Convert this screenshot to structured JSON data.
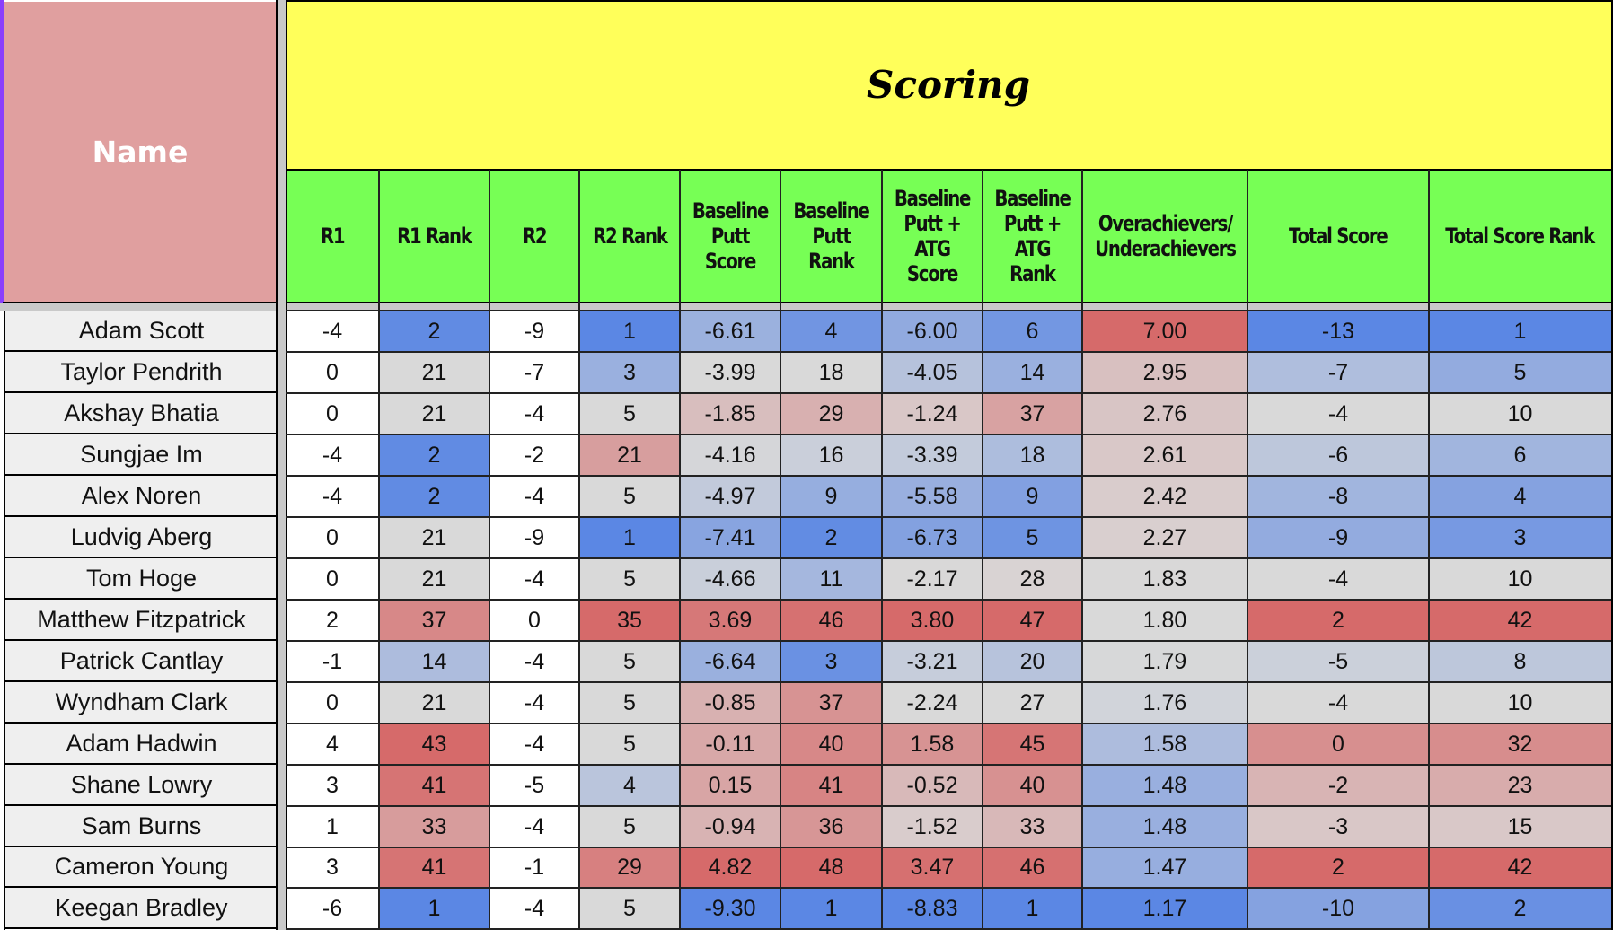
{
  "sheet": {
    "name_header": "Name",
    "group_header": "Scoring",
    "columns": [
      "R1",
      "R1 Rank",
      "R2",
      "R2 Rank",
      "Baseline Putt Score",
      "Baseline Putt Rank",
      "Baseline Putt + ATG Score",
      "Baseline Putt + ATG Rank",
      "Overachievers/ Underachievers",
      "Total Score",
      "Total Score Rank"
    ],
    "header_colors": {
      "name": "#e09f9f",
      "group": "#ffff5a",
      "columns": "#77ff55"
    },
    "scale_colors": {
      "low": "#5b87e4",
      "mid": "#d9d9d9",
      "high": "#d66a6a"
    },
    "rows": [
      {
        "name": "Adam Scott",
        "r1": "-4",
        "r1_rank": "2",
        "r2": "-9",
        "r2_rank": "1",
        "bp_score": "-6.61",
        "bp_rank": "4",
        "bpatg_score": "-6.00",
        "bpatg_rank": "6",
        "over_under": "7.00",
        "total": "-13",
        "total_rank": "1"
      },
      {
        "name": "Taylor Pendrith",
        "r1": "0",
        "r1_rank": "21",
        "r2": "-7",
        "r2_rank": "3",
        "bp_score": "-3.99",
        "bp_rank": "18",
        "bpatg_score": "-4.05",
        "bpatg_rank": "14",
        "over_under": "2.95",
        "total": "-7",
        "total_rank": "5"
      },
      {
        "name": "Akshay Bhatia",
        "r1": "0",
        "r1_rank": "21",
        "r2": "-4",
        "r2_rank": "5",
        "bp_score": "-1.85",
        "bp_rank": "29",
        "bpatg_score": "-1.24",
        "bpatg_rank": "37",
        "over_under": "2.76",
        "total": "-4",
        "total_rank": "10"
      },
      {
        "name": "Sungjae Im",
        "r1": "-4",
        "r1_rank": "2",
        "r2": "-2",
        "r2_rank": "21",
        "bp_score": "-4.16",
        "bp_rank": "16",
        "bpatg_score": "-3.39",
        "bpatg_rank": "18",
        "over_under": "2.61",
        "total": "-6",
        "total_rank": "6"
      },
      {
        "name": "Alex Noren",
        "r1": "-4",
        "r1_rank": "2",
        "r2": "-4",
        "r2_rank": "5",
        "bp_score": "-4.97",
        "bp_rank": "9",
        "bpatg_score": "-5.58",
        "bpatg_rank": "9",
        "over_under": "2.42",
        "total": "-8",
        "total_rank": "4"
      },
      {
        "name": "Ludvig Aberg",
        "r1": "0",
        "r1_rank": "21",
        "r2": "-9",
        "r2_rank": "1",
        "bp_score": "-7.41",
        "bp_rank": "2",
        "bpatg_score": "-6.73",
        "bpatg_rank": "5",
        "over_under": "2.27",
        "total": "-9",
        "total_rank": "3"
      },
      {
        "name": "Tom Hoge",
        "r1": "0",
        "r1_rank": "21",
        "r2": "-4",
        "r2_rank": "5",
        "bp_score": "-4.66",
        "bp_rank": "11",
        "bpatg_score": "-2.17",
        "bpatg_rank": "28",
        "over_under": "1.83",
        "total": "-4",
        "total_rank": "10"
      },
      {
        "name": "Matthew Fitzpatrick",
        "r1": "2",
        "r1_rank": "37",
        "r2": "0",
        "r2_rank": "35",
        "bp_score": "3.69",
        "bp_rank": "46",
        "bpatg_score": "3.80",
        "bpatg_rank": "47",
        "over_under": "1.80",
        "total": "2",
        "total_rank": "42"
      },
      {
        "name": "Patrick Cantlay",
        "r1": "-1",
        "r1_rank": "14",
        "r2": "-4",
        "r2_rank": "5",
        "bp_score": "-6.64",
        "bp_rank": "3",
        "bpatg_score": "-3.21",
        "bpatg_rank": "20",
        "over_under": "1.79",
        "total": "-5",
        "total_rank": "8"
      },
      {
        "name": "Wyndham Clark",
        "r1": "0",
        "r1_rank": "21",
        "r2": "-4",
        "r2_rank": "5",
        "bp_score": "-0.85",
        "bp_rank": "37",
        "bpatg_score": "-2.24",
        "bpatg_rank": "27",
        "over_under": "1.76",
        "total": "-4",
        "total_rank": "10"
      },
      {
        "name": "Adam Hadwin",
        "r1": "4",
        "r1_rank": "43",
        "r2": "-4",
        "r2_rank": "5",
        "bp_score": "-0.11",
        "bp_rank": "40",
        "bpatg_score": "1.58",
        "bpatg_rank": "45",
        "over_under": "1.58",
        "total": "0",
        "total_rank": "32"
      },
      {
        "name": "Shane Lowry",
        "r1": "3",
        "r1_rank": "41",
        "r2": "-5",
        "r2_rank": "4",
        "bp_score": "0.15",
        "bp_rank": "41",
        "bpatg_score": "-0.52",
        "bpatg_rank": "40",
        "over_under": "1.48",
        "total": "-2",
        "total_rank": "23"
      },
      {
        "name": "Sam Burns",
        "r1": "1",
        "r1_rank": "33",
        "r2": "-4",
        "r2_rank": "5",
        "bp_score": "-0.94",
        "bp_rank": "36",
        "bpatg_score": "-1.52",
        "bpatg_rank": "33",
        "over_under": "1.48",
        "total": "-3",
        "total_rank": "15"
      },
      {
        "name": "Cameron Young",
        "r1": "3",
        "r1_rank": "41",
        "r2": "-1",
        "r2_rank": "29",
        "bp_score": "4.82",
        "bp_rank": "48",
        "bpatg_score": "3.47",
        "bpatg_rank": "46",
        "over_under": "1.47",
        "total": "2",
        "total_rank": "42"
      },
      {
        "name": "Keegan Bradley",
        "r1": "-6",
        "r1_rank": "1",
        "r2": "-4",
        "r2_rank": "5",
        "bp_score": "-9.30",
        "bp_rank": "1",
        "bpatg_score": "-8.83",
        "bpatg_rank": "1",
        "over_under": "1.17",
        "total": "-10",
        "total_rank": "2"
      }
    ]
  }
}
